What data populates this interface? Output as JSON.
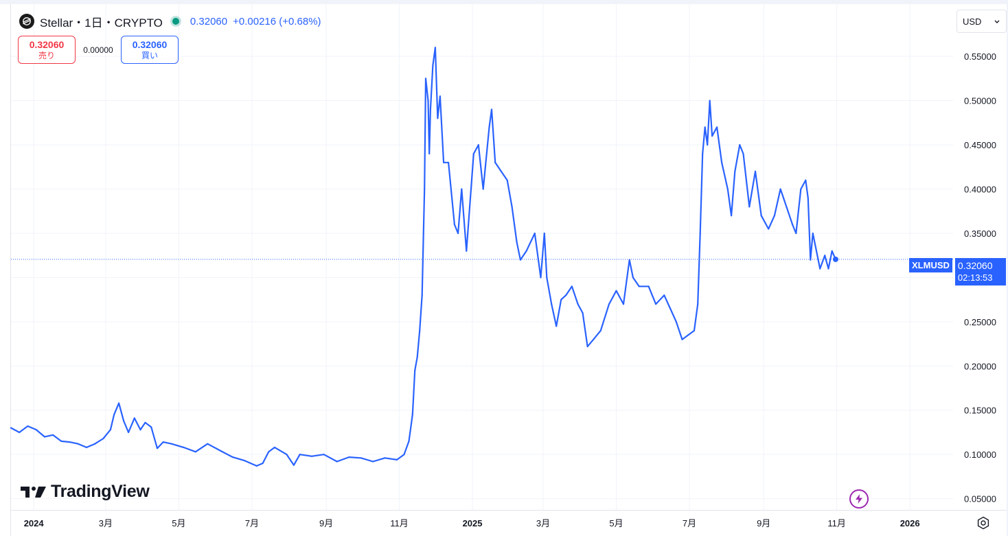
{
  "symbol": {
    "title": "Stellar・1日・CRYPTO",
    "last": "0.32060",
    "change": "+0.00216 (+0.68%)",
    "ticker": "XLMUSD",
    "countdown": "02:13:53"
  },
  "trade": {
    "sell_price": "0.32060",
    "sell_label": "売り",
    "spread": "0.00000",
    "buy_price": "0.32060",
    "buy_label": "買い"
  },
  "currency": {
    "value": "USD"
  },
  "brand": {
    "name": "TradingView"
  },
  "icons": {
    "symbol_logo": "stellar-logo-icon",
    "status": "market-status-dot-icon",
    "chevron": "chevron-down-icon",
    "settings": "gear-icon",
    "alert": "lightning-icon"
  },
  "colors": {
    "line": "#2962ff",
    "grid": "#f0f3fa",
    "sell": "#f23645",
    "buy": "#2962ff",
    "status": "#089981"
  },
  "chart_data": {
    "type": "line",
    "y_ticks": [
      "0.55000",
      "0.50000",
      "0.45000",
      "0.40000",
      "0.35000",
      "0.30000",
      "0.25000",
      "0.20000",
      "0.15000",
      "0.10000",
      "0.05000"
    ],
    "y_tick_values": [
      0.55,
      0.5,
      0.45,
      0.4,
      0.35,
      0.3,
      0.25,
      0.2,
      0.15,
      0.1,
      0.05
    ],
    "x_ticks": [
      {
        "label": "2024",
        "date": "2024-01-01",
        "bold": true
      },
      {
        "label": "3月",
        "date": "2024-03-01",
        "bold": false
      },
      {
        "label": "5月",
        "date": "2024-05-01",
        "bold": false
      },
      {
        "label": "7月",
        "date": "2024-07-01",
        "bold": false
      },
      {
        "label": "9月",
        "date": "2024-09-01",
        "bold": false
      },
      {
        "label": "11月",
        "date": "2024-11-01",
        "bold": false
      },
      {
        "label": "2025",
        "date": "2025-01-01",
        "bold": true
      },
      {
        "label": "3月",
        "date": "2025-03-01",
        "bold": false
      },
      {
        "label": "5月",
        "date": "2025-05-01",
        "bold": false
      },
      {
        "label": "7月",
        "date": "2025-07-01",
        "bold": false
      },
      {
        "label": "9月",
        "date": "2025-09-01",
        "bold": false
      },
      {
        "label": "11月",
        "date": "2025-11-01",
        "bold": false
      },
      {
        "label": "2026",
        "date": "2026-01-01",
        "bold": true
      }
    ],
    "x_range": [
      "2023-12-13",
      "2026-02-06"
    ],
    "ylim": [
      0.0373,
      0.6091
    ],
    "grid": true,
    "last_value": 0.3206,
    "series": [
      {
        "points": [
          [
            "2023-12-13",
            0.13
          ],
          [
            "2023-12-20",
            0.125
          ],
          [
            "2023-12-27",
            0.132
          ],
          [
            "2024-01-03",
            0.128
          ],
          [
            "2024-01-10",
            0.12
          ],
          [
            "2024-01-17",
            0.122
          ],
          [
            "2024-01-24",
            0.115
          ],
          [
            "2024-01-31",
            0.114
          ],
          [
            "2024-02-07",
            0.112
          ],
          [
            "2024-02-14",
            0.108
          ],
          [
            "2024-02-21",
            0.112
          ],
          [
            "2024-02-28",
            0.118
          ],
          [
            "2024-03-05",
            0.128
          ],
          [
            "2024-03-08",
            0.145
          ],
          [
            "2024-03-12",
            0.158
          ],
          [
            "2024-03-16",
            0.138
          ],
          [
            "2024-03-20",
            0.125
          ],
          [
            "2024-03-25",
            0.141
          ],
          [
            "2024-03-30",
            0.128
          ],
          [
            "2024-04-03",
            0.136
          ],
          [
            "2024-04-08",
            0.131
          ],
          [
            "2024-04-13",
            0.107
          ],
          [
            "2024-04-18",
            0.114
          ],
          [
            "2024-04-25",
            0.112
          ],
          [
            "2024-05-05",
            0.108
          ],
          [
            "2024-05-15",
            0.103
          ],
          [
            "2024-05-25",
            0.112
          ],
          [
            "2024-06-05",
            0.104
          ],
          [
            "2024-06-15",
            0.097
          ],
          [
            "2024-06-25",
            0.093
          ],
          [
            "2024-07-05",
            0.087
          ],
          [
            "2024-07-10",
            0.09
          ],
          [
            "2024-07-15",
            0.103
          ],
          [
            "2024-07-20",
            0.108
          ],
          [
            "2024-07-30",
            0.1
          ],
          [
            "2024-08-05",
            0.088
          ],
          [
            "2024-08-10",
            0.1
          ],
          [
            "2024-08-20",
            0.098
          ],
          [
            "2024-08-30",
            0.1
          ],
          [
            "2024-09-10",
            0.092
          ],
          [
            "2024-09-20",
            0.097
          ],
          [
            "2024-09-30",
            0.096
          ],
          [
            "2024-10-10",
            0.092
          ],
          [
            "2024-10-20",
            0.096
          ],
          [
            "2024-10-30",
            0.094
          ],
          [
            "2024-11-05",
            0.1
          ],
          [
            "2024-11-09",
            0.115
          ],
          [
            "2024-11-12",
            0.145
          ],
          [
            "2024-11-14",
            0.195
          ],
          [
            "2024-11-16",
            0.21
          ],
          [
            "2024-11-18",
            0.24
          ],
          [
            "2024-11-20",
            0.28
          ],
          [
            "2024-11-22",
            0.4
          ],
          [
            "2024-11-23",
            0.525
          ],
          [
            "2024-11-25",
            0.5
          ],
          [
            "2024-11-26",
            0.44
          ],
          [
            "2024-11-27",
            0.49
          ],
          [
            "2024-11-29",
            0.54
          ],
          [
            "2024-12-01",
            0.56
          ],
          [
            "2024-12-03",
            0.48
          ],
          [
            "2024-12-05",
            0.505
          ],
          [
            "2024-12-08",
            0.43
          ],
          [
            "2024-12-12",
            0.43
          ],
          [
            "2024-12-17",
            0.36
          ],
          [
            "2024-12-20",
            0.35
          ],
          [
            "2024-12-23",
            0.4
          ],
          [
            "2024-12-27",
            0.33
          ],
          [
            "2025-01-02",
            0.44
          ],
          [
            "2025-01-06",
            0.45
          ],
          [
            "2025-01-10",
            0.4
          ],
          [
            "2025-01-15",
            0.47
          ],
          [
            "2025-01-17",
            0.49
          ],
          [
            "2025-01-20",
            0.43
          ],
          [
            "2025-01-25",
            0.42
          ],
          [
            "2025-01-30",
            0.41
          ],
          [
            "2025-02-03",
            0.38
          ],
          [
            "2025-02-07",
            0.34
          ],
          [
            "2025-02-10",
            0.32
          ],
          [
            "2025-02-15",
            0.33
          ],
          [
            "2025-02-22",
            0.35
          ],
          [
            "2025-02-27",
            0.3
          ],
          [
            "2025-03-02",
            0.35
          ],
          [
            "2025-03-04",
            0.3
          ],
          [
            "2025-03-08",
            0.27
          ],
          [
            "2025-03-12",
            0.245
          ],
          [
            "2025-03-16",
            0.275
          ],
          [
            "2025-03-20",
            0.28
          ],
          [
            "2025-03-25",
            0.29
          ],
          [
            "2025-03-30",
            0.27
          ],
          [
            "2025-04-03",
            0.26
          ],
          [
            "2025-04-07",
            0.222
          ],
          [
            "2025-04-12",
            0.23
          ],
          [
            "2025-04-18",
            0.24
          ],
          [
            "2025-04-25",
            0.27
          ],
          [
            "2025-05-01",
            0.285
          ],
          [
            "2025-05-07",
            0.27
          ],
          [
            "2025-05-10",
            0.3
          ],
          [
            "2025-05-12",
            0.32
          ],
          [
            "2025-05-15",
            0.3
          ],
          [
            "2025-05-20",
            0.29
          ],
          [
            "2025-05-28",
            0.29
          ],
          [
            "2025-06-03",
            0.27
          ],
          [
            "2025-06-10",
            0.28
          ],
          [
            "2025-06-15",
            0.265
          ],
          [
            "2025-06-20",
            0.25
          ],
          [
            "2025-06-25",
            0.23
          ],
          [
            "2025-06-30",
            0.235
          ],
          [
            "2025-07-05",
            0.24
          ],
          [
            "2025-07-08",
            0.27
          ],
          [
            "2025-07-10",
            0.35
          ],
          [
            "2025-07-12",
            0.44
          ],
          [
            "2025-07-14",
            0.47
          ],
          [
            "2025-07-16",
            0.45
          ],
          [
            "2025-07-18",
            0.5
          ],
          [
            "2025-07-20",
            0.46
          ],
          [
            "2025-07-24",
            0.47
          ],
          [
            "2025-07-28",
            0.43
          ],
          [
            "2025-08-02",
            0.4
          ],
          [
            "2025-08-05",
            0.37
          ],
          [
            "2025-08-08",
            0.42
          ],
          [
            "2025-08-12",
            0.45
          ],
          [
            "2025-08-15",
            0.44
          ],
          [
            "2025-08-20",
            0.38
          ],
          [
            "2025-08-25",
            0.42
          ],
          [
            "2025-08-30",
            0.37
          ],
          [
            "2025-09-05",
            0.355
          ],
          [
            "2025-09-10",
            0.37
          ],
          [
            "2025-09-15",
            0.4
          ],
          [
            "2025-09-20",
            0.38
          ],
          [
            "2025-09-25",
            0.36
          ],
          [
            "2025-09-28",
            0.35
          ],
          [
            "2025-10-02",
            0.4
          ],
          [
            "2025-10-06",
            0.41
          ],
          [
            "2025-10-08",
            0.39
          ],
          [
            "2025-10-10",
            0.32
          ],
          [
            "2025-10-12",
            0.35
          ],
          [
            "2025-10-15",
            0.33
          ],
          [
            "2025-10-18",
            0.31
          ],
          [
            "2025-10-22",
            0.325
          ],
          [
            "2025-10-25",
            0.31
          ],
          [
            "2025-10-28",
            0.33
          ],
          [
            "2025-10-31",
            0.3206
          ]
        ]
      }
    ]
  }
}
